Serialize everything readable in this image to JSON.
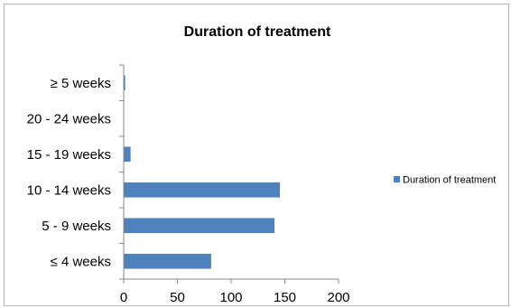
{
  "chart_data": {
    "type": "bar",
    "orientation": "horizontal",
    "title": "Duration of treatment",
    "categories": [
      "≤ 4 weeks",
      "5 - 9 weeks",
      "10 - 14 weeks",
      "15 - 19 weeks",
      "20 - 24 weeks",
      "≥ 5 weeks"
    ],
    "series": [
      {
        "name": "Duration of treatment",
        "values": [
          81,
          140,
          145,
          6,
          0,
          1
        ],
        "color": "#4f81bd"
      }
    ],
    "xlabel": "",
    "ylabel": "",
    "xlim": [
      0,
      200
    ],
    "x_ticks": [
      "0",
      "50",
      "100",
      "150",
      "200"
    ],
    "grid": false,
    "legend": "right"
  }
}
